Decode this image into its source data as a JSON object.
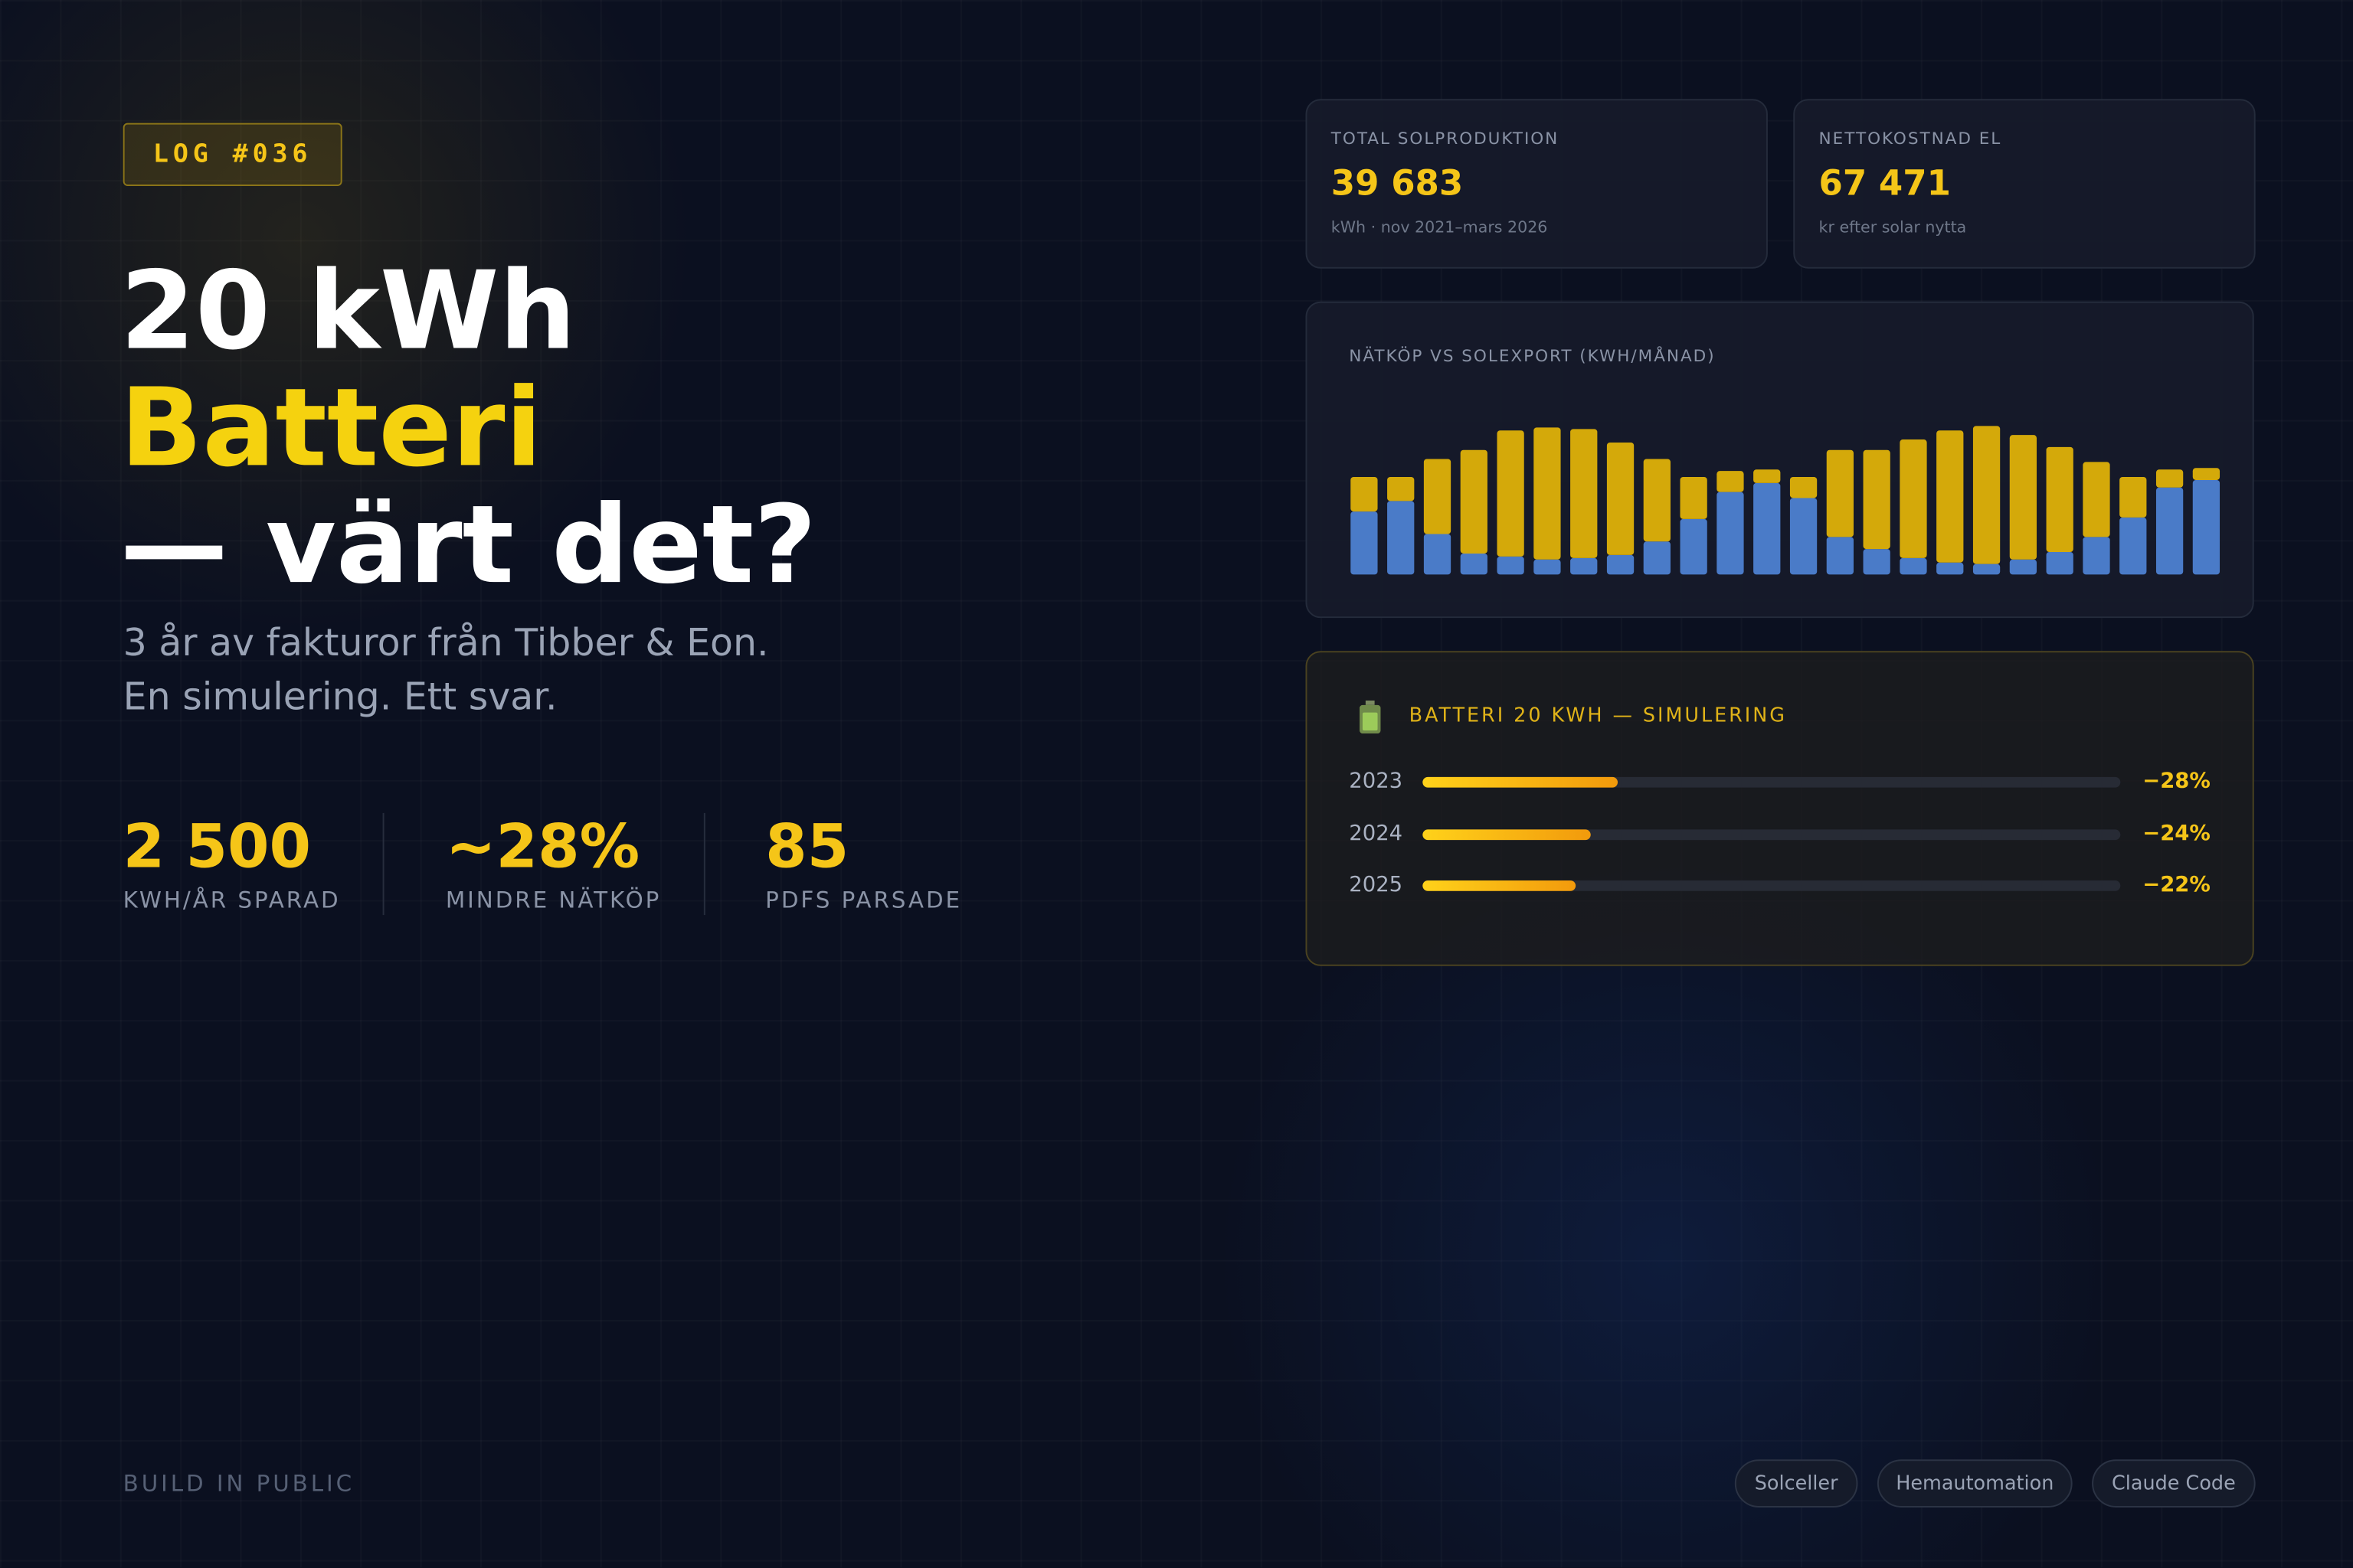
{
  "badge": "LOG #036",
  "headline": [
    "20 kWh",
    "Batteri",
    "— värt det?"
  ],
  "subtitle": [
    "3 år av fakturor från Tibber & Eon.",
    "En simulering. Ett svar."
  ],
  "stats": [
    {
      "value": "2 500",
      "label": "KWH/ÅR SPARAD"
    },
    {
      "value": "~28%",
      "label": "MINDRE NÄTKÖP"
    },
    {
      "value": "85",
      "label": "PDFS PARSADE"
    }
  ],
  "cards": [
    {
      "label": "TOTAL SOLPRODUKTION",
      "value": "39 683",
      "sub": "kWh · nov 2021–mars 2026"
    },
    {
      "label": "NETTOKOSTNAD EL",
      "value": "67 471",
      "sub": "kr efter solar nytta"
    }
  ],
  "chart_data": [
    {
      "type": "stacked-bar",
      "title": "NÄTKÖP VS SOLEXPORT (KWH/MÅNAD)",
      "categories": [
        null,
        null,
        null,
        null,
        null,
        null,
        null,
        null,
        null,
        null,
        null,
        null,
        null,
        null,
        null,
        null,
        null,
        null,
        null,
        null,
        null,
        null,
        null,
        null
      ],
      "series": [
        {
          "color": "#4a7bc8",
          "values": [
            42,
            49,
            27,
            14,
            12,
            10,
            11,
            13,
            22,
            37,
            55,
            61,
            51,
            25,
            17,
            11,
            8,
            7,
            10,
            15,
            25,
            38,
            58,
            63
          ]
        },
        {
          "color": "#d4a90a",
          "values": [
            23,
            16,
            50,
            69,
            84,
            88,
            86,
            75,
            55,
            28,
            14,
            9,
            14,
            58,
            66,
            79,
            88,
            92,
            83,
            70,
            50,
            27,
            12,
            8
          ]
        }
      ],
      "ylim": [
        0,
        100
      ]
    },
    {
      "type": "progress",
      "title": "BATTERI 20 KWH — SIMULERING",
      "categories": [
        "2023",
        "2024",
        "2025"
      ],
      "values": [
        -28,
        -24,
        -22
      ],
      "value_labels": [
        "−28%",
        "−24%",
        "−22%"
      ],
      "xlim": [
        0,
        -100
      ]
    }
  ],
  "footer": "BUILD IN PUBLIC",
  "tags": [
    "Solceller",
    "Hemautomation",
    "Claude Code"
  ]
}
